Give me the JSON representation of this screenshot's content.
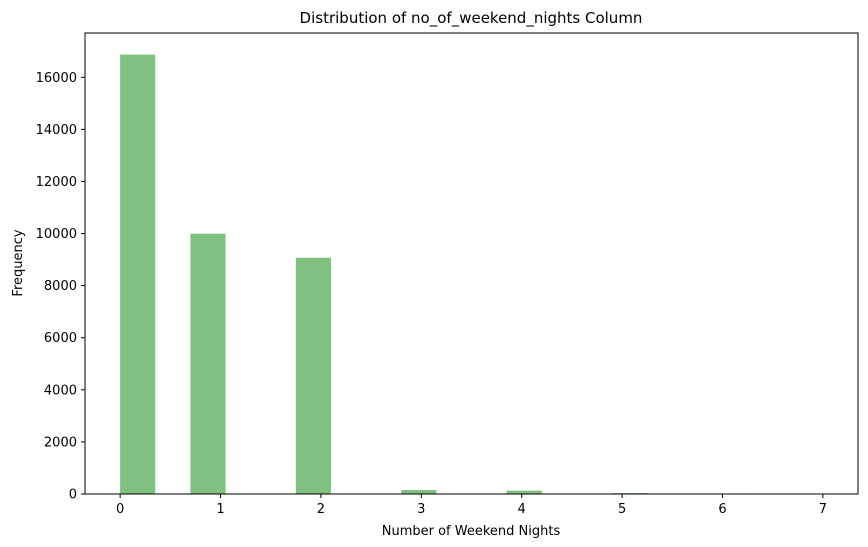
{
  "chart_data": {
    "type": "bar",
    "title": "Distribution of no_of_weekend_nights Column",
    "xlabel": "Number of Weekend Nights",
    "ylabel": "Frequency",
    "xlim": [
      -0.35,
      7.35
    ],
    "ylim": [
      0,
      17700
    ],
    "xticks": [
      0,
      1,
      2,
      3,
      4,
      5,
      6,
      7
    ],
    "yticks": [
      0,
      2000,
      4000,
      6000,
      8000,
      10000,
      12000,
      14000,
      16000
    ],
    "bin_width": 0.35,
    "bins": [
      {
        "x": 0,
        "value": 16872
      },
      {
        "x": 0.7,
        "value": 9995
      },
      {
        "x": 1.75,
        "value": 9071
      },
      {
        "x": 2.8,
        "value": 153
      },
      {
        "x": 3.85,
        "value": 129
      },
      {
        "x": 4.9,
        "value": 34
      },
      {
        "x": 5.95,
        "value": 20
      },
      {
        "x": 7.0,
        "value": 1
      }
    ],
    "bar_color": "#80c080",
    "grid": false,
    "legend": "none"
  }
}
